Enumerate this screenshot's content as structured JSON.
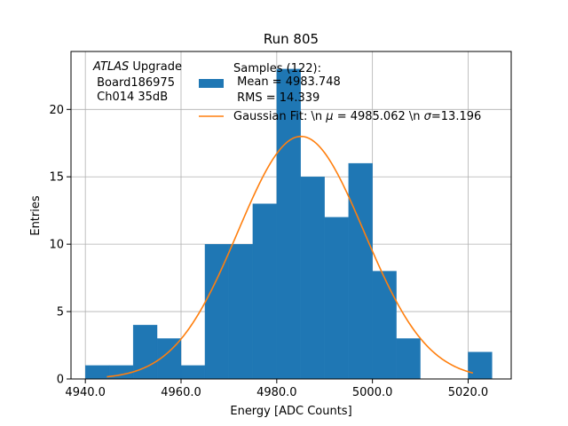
{
  "chart_data": {
    "type": "bar",
    "title": "Run 805",
    "xlabel": "Energy [ADC Counts]",
    "ylabel": "Entries",
    "xlim": [
      4937.0,
      5029.0
    ],
    "ylim": [
      0,
      24.3
    ],
    "xticks": [
      4940.0,
      4960.0,
      4980.0,
      5000.0,
      5020.0
    ],
    "xtick_labels": [
      "4940.0",
      "4960.0",
      "4980.0",
      "5000.0",
      "5020.0"
    ],
    "yticks": [
      0,
      5,
      10,
      15,
      20
    ],
    "ytick_labels": [
      "0",
      "5",
      "10",
      "15",
      "20"
    ],
    "grid": true,
    "bin_width": 5,
    "bins": [
      {
        "x0": 4940,
        "count": 1
      },
      {
        "x0": 4945,
        "count": 1
      },
      {
        "x0": 4950,
        "count": 4
      },
      {
        "x0": 4955,
        "count": 3
      },
      {
        "x0": 4960,
        "count": 1
      },
      {
        "x0": 4965,
        "count": 10
      },
      {
        "x0": 4970,
        "count": 10
      },
      {
        "x0": 4975,
        "count": 13
      },
      {
        "x0": 4980,
        "count": 23
      },
      {
        "x0": 4985,
        "count": 15
      },
      {
        "x0": 4990,
        "count": 12
      },
      {
        "x0": 4995,
        "count": 16
      },
      {
        "x0": 5000,
        "count": 8
      },
      {
        "x0": 5005,
        "count": 3
      },
      {
        "x0": 5010,
        "count": 0
      },
      {
        "x0": 5015,
        "count": 0
      },
      {
        "x0": 5020,
        "count": 2
      }
    ],
    "fit": {
      "mu": 4985.062,
      "sigma": 13.196,
      "amplitude": 18.0,
      "x_range": [
        4944.5,
        5021.0
      ]
    },
    "colors": {
      "bars": "#1f77b4",
      "fit": "#ff7f0e",
      "grid": "#b0b0b0"
    },
    "annotation": {
      "line1_italic": "ATLAS",
      "line1_rest": " Upgrade",
      "line2": " Board186975",
      "line3": " Ch014 35dB"
    },
    "legend": {
      "placement": "top-right",
      "samples_title": "Samples (122):",
      "samples_mean": " Mean = 4983.748",
      "samples_rms": " RMS = 14.339",
      "fit_prefix": "Gaussian Fit: \\n ",
      "fit_mu_symbol": "μ",
      "fit_mid": " = 4985.062 \\n ",
      "fit_sigma_symbol": "σ",
      "fit_end": "=13.196"
    }
  }
}
